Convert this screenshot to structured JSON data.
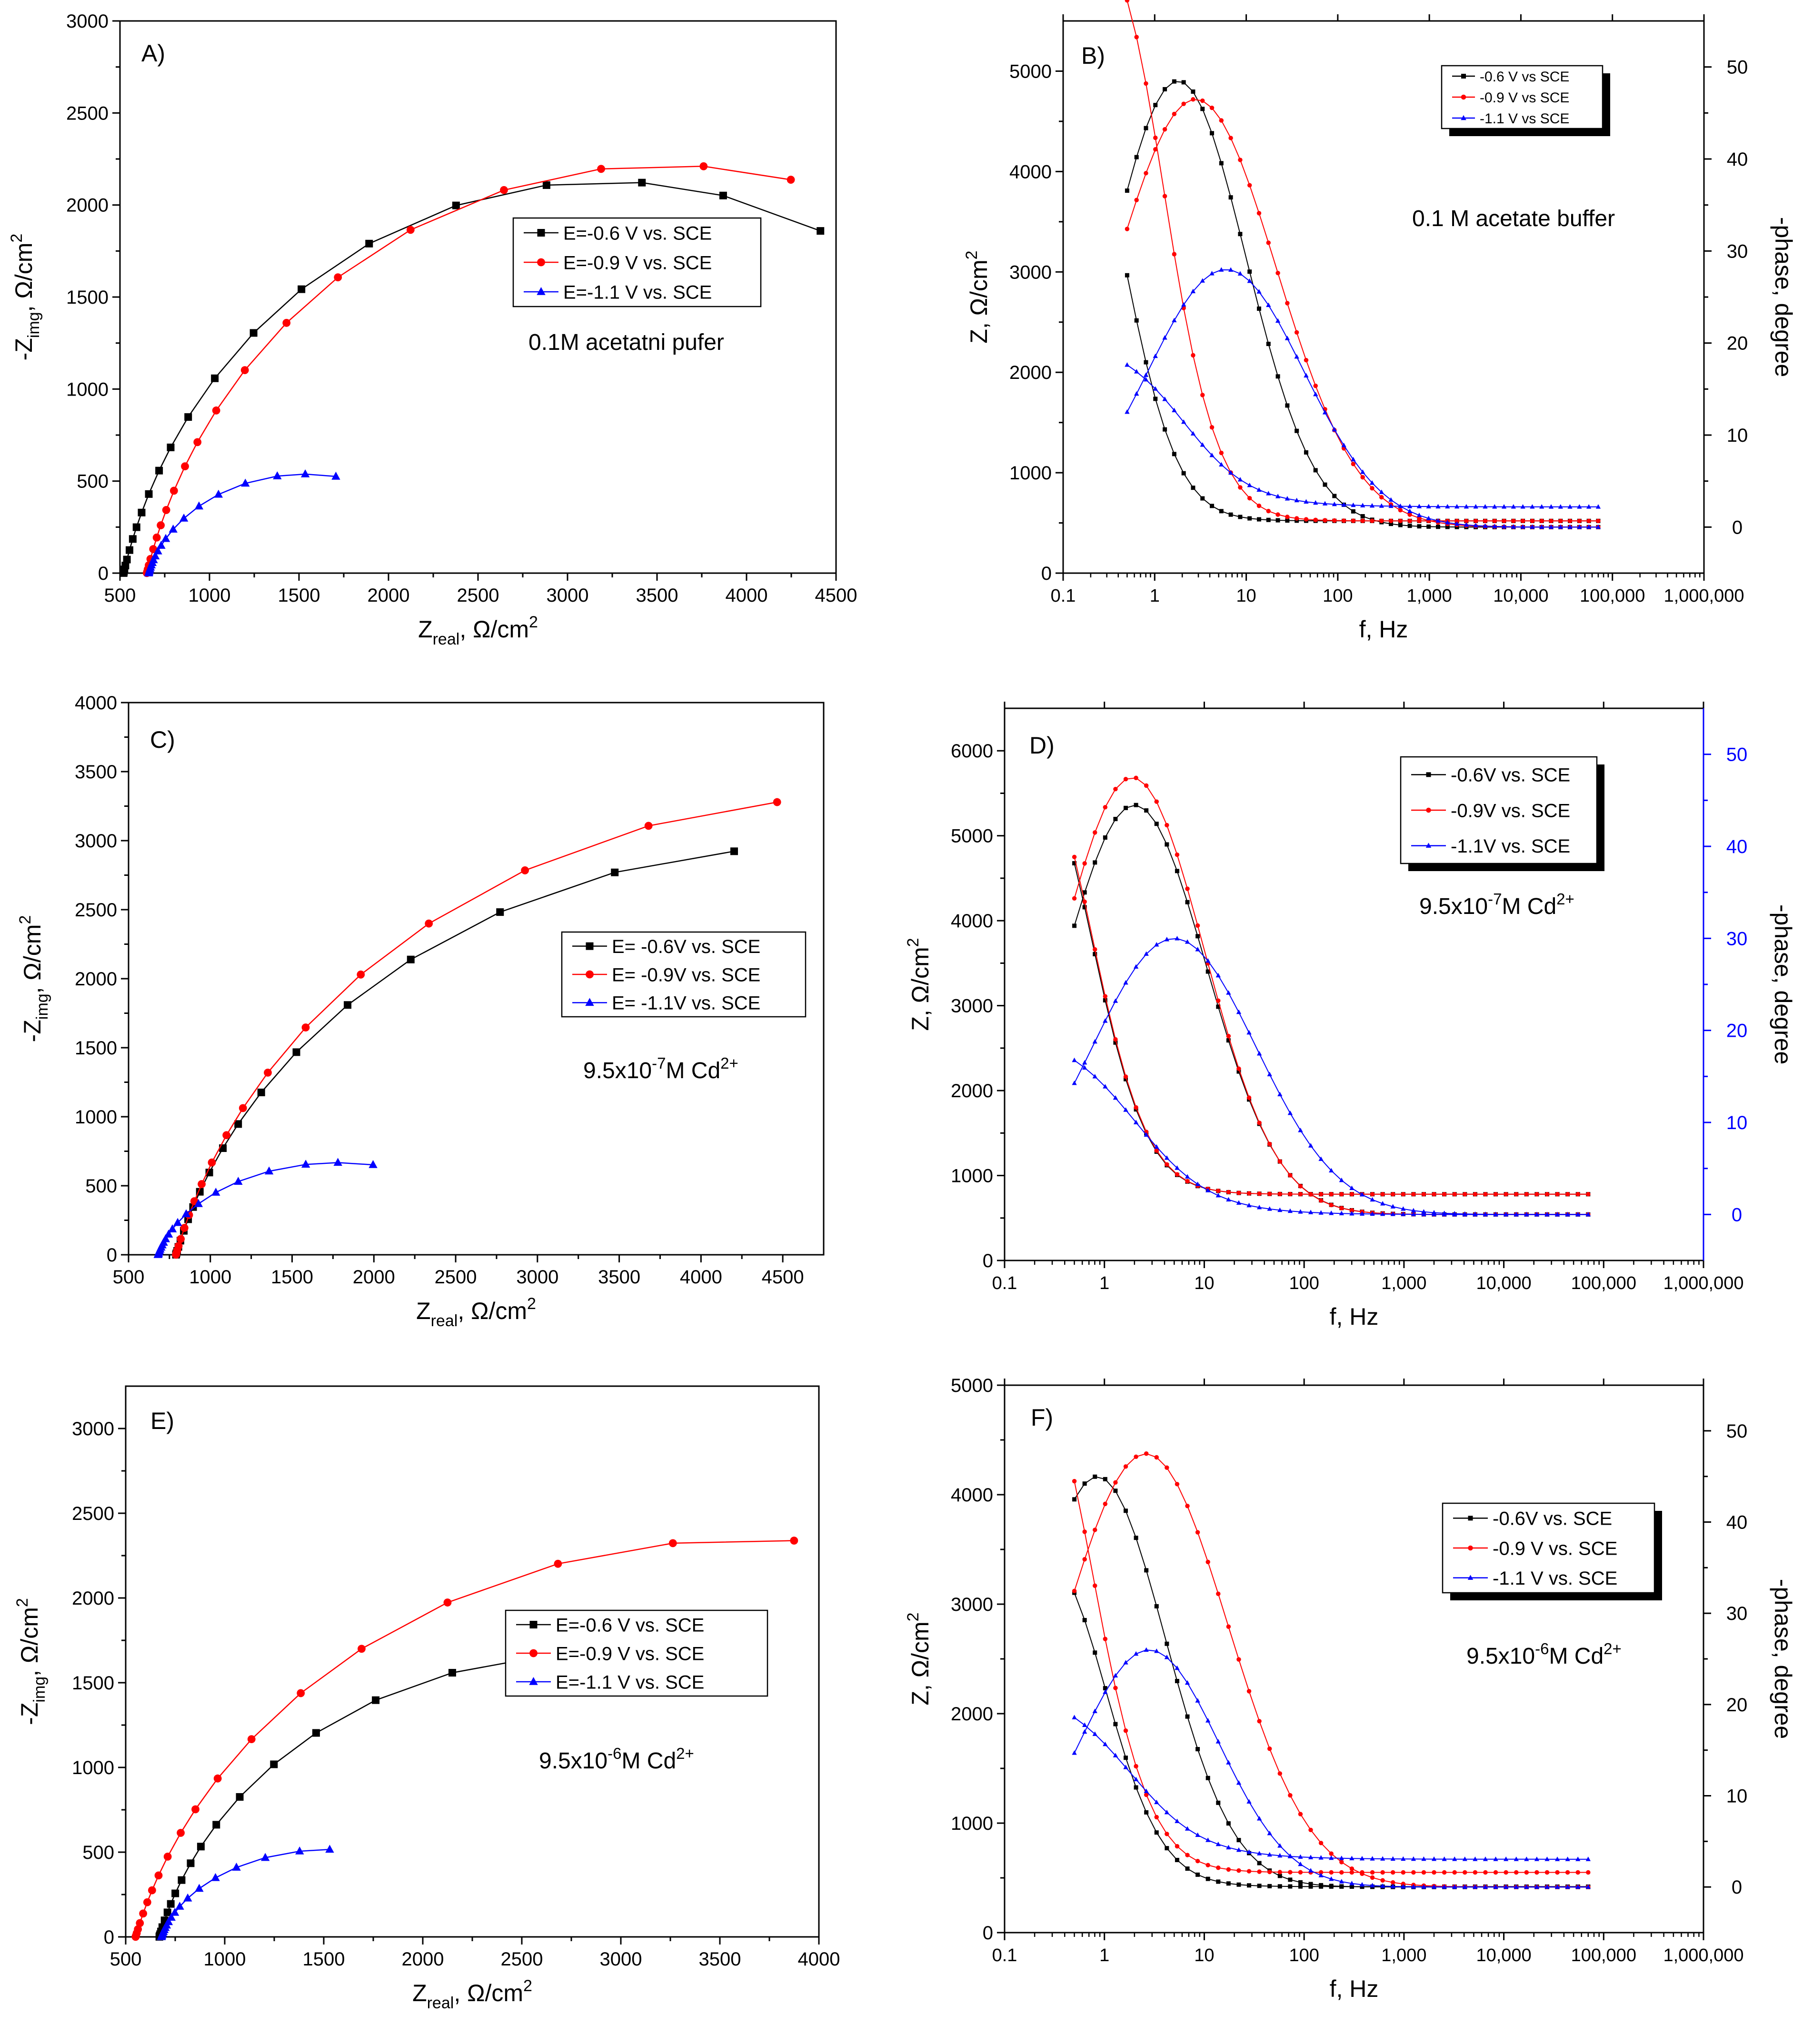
{
  "figure": "EIS Nyquist and Bode plots",
  "chart_data": [
    {
      "id": "A",
      "type": "scatter",
      "kind": "nyquist",
      "panel_label": "A)",
      "annotation": "0.1M acetatni pufer",
      "xlabel": "Z",
      "xlabel_sub": "real",
      "xlabel_tail": ", Ω/cm",
      "xlabel_sup": "2",
      "ylabel": "-Z",
      "ylabel_sub": "img",
      "ylabel_tail": ", Ω/cm",
      "ylabel_sup": "2",
      "xlim": [
        500,
        4500
      ],
      "ylim": [
        0,
        3000
      ],
      "xticks": [
        500,
        1000,
        1500,
        2000,
        2500,
        3000,
        3500,
        4000,
        4500
      ],
      "yticks": [
        0,
        500,
        1000,
        1500,
        2000,
        2500,
        3000
      ],
      "series": [
        {
          "name": "E=-0.6 V vs. SCE",
          "color": "#000000",
          "marker": "square",
          "R0": 520,
          "Rct": 5400,
          "scale": 1.0,
          "freqs": [
            70000,
            10000,
            2000,
            700,
            300,
            150,
            80,
            50,
            35,
            25,
            18,
            13,
            10,
            7.5,
            5.5,
            4,
            3,
            2.2,
            1.6,
            1.2,
            0.9,
            0.7,
            0.5
          ]
        },
        {
          "name": "E=-0.9 V vs. SCE",
          "color": "#ff0000",
          "marker": "circle",
          "R0": 650,
          "Rct": 5800,
          "scale": 0.97,
          "freqs": [
            70000,
            10000,
            2000,
            700,
            300,
            150,
            80,
            50,
            35,
            25,
            18,
            13,
            10,
            7.5,
            5.5,
            4,
            3,
            2.2,
            1.6,
            1.2,
            0.9,
            0.7,
            0.5
          ]
        },
        {
          "name": "E=-1.1 V vs. SCE",
          "color": "#0000ff",
          "marker": "triangle",
          "R0": 660,
          "Rct": 1750,
          "scale": 0.78,
          "freqs": [
            70000,
            5000,
            1000,
            400,
            200,
            120,
            80,
            55,
            40,
            30,
            22,
            16,
            12,
            9,
            6.5,
            4.7,
            3.4,
            2.5,
            1.8,
            1.3,
            1,
            0.75
          ]
        }
      ],
      "legend": [
        "E=-0.6 V vs. SCE",
        "E=-0.9 V vs. SCE",
        "E=-1.1 V vs. SCE"
      ]
    },
    {
      "id": "B",
      "type": "line",
      "kind": "bode",
      "panel_label": "B)",
      "annotation": "0.1 M acetate buffer",
      "xlabel": "f, Hz",
      "ylabel": "Z, Ω/cm",
      "ylabel_sup": "2",
      "y2label": "-phase, degree",
      "ylim": [
        0,
        5500
      ],
      "y2lim": [
        -5,
        55
      ],
      "yticks": [
        0,
        1000,
        2000,
        3000,
        4000,
        5000
      ],
      "y2ticks": [
        0,
        10,
        20,
        30,
        40,
        50
      ],
      "xlim": [
        0.1,
        1000000
      ],
      "xticks": [
        0.1,
        1,
        10,
        100,
        1000,
        10000,
        100000,
        1000000
      ],
      "xticklabels": [
        "0.1",
        "1",
        "10",
        "100",
        "1,000",
        "10,000",
        "100,000",
        "1,000,000"
      ],
      "y2color": "#000000",
      "series": [
        {
          "name": "-0.6 V vs SCE",
          "color": "#000000",
          "marker": "square",
          "R0": 520,
          "Rct": 4600,
          "fc": 0.35,
          "n": 1.0,
          "phase_peak": 48.5,
          "phase_fpk": 1.8,
          "phase_w": 0.74
        },
        {
          "name": "-0.9 V vs SCE",
          "color": "#ff0000",
          "marker": "circle",
          "R0": 520,
          "Rct": 6000,
          "fc": 0.9,
          "n": 1.0,
          "phase_peak": 46.5,
          "phase_fpk": 2.8,
          "phase_w": 0.88
        },
        {
          "name": "-1.1 V vs SCE",
          "color": "#0000ff",
          "marker": "triangle",
          "R0": 660,
          "Rct": 1700,
          "fc": 1.6,
          "n": 0.8,
          "phase_peak": 28,
          "phase_fpk": 6,
          "phase_w": 0.85
        }
      ],
      "legend": [
        "-0.6 V vs SCE",
        "-0.9 V vs SCE",
        "-1.1 V vs SCE"
      ]
    },
    {
      "id": "C",
      "type": "scatter",
      "kind": "nyquist",
      "panel_label": "C)",
      "annotation": "9.5x10",
      "annotation_sup": "-7",
      "annotation_tail": "M Cd",
      "annotation_sup2": "2+",
      "xlabel": "Z",
      "xlabel_sub": "real",
      "xlabel_tail": ", Ω/cm",
      "xlabel_sup": "2",
      "ylabel": "-Z",
      "ylabel_sub": "img",
      "ylabel_tail": ", Ω/cm",
      "ylabel_sup": "2",
      "xlim": [
        500,
        4750
      ],
      "ylim": [
        0,
        4000
      ],
      "xticks": [
        500,
        1000,
        1500,
        2000,
        2500,
        3000,
        3500,
        4000,
        4500
      ],
      "yticks": [
        0,
        500,
        1000,
        1500,
        2000,
        2500,
        3000,
        3500,
        4000
      ],
      "series": [
        {
          "name": "E= -0.6V vs. SCE",
          "color": "#000000",
          "marker": "square",
          "R0": 790,
          "Rct": 7800,
          "scale": 0.96,
          "freqs": [
            70000,
            10000,
            2000,
            700,
            300,
            150,
            80,
            50,
            35,
            25,
            18,
            13,
            10,
            7.5,
            5.5,
            4,
            3,
            2.2,
            1.6,
            1.2,
            0.9,
            0.7,
            0.5
          ]
        },
        {
          "name": "E= -0.9V vs. SCE",
          "color": "#ff0000",
          "marker": "circle",
          "R0": 790,
          "Rct": 8400,
          "scale": 1.0,
          "freqs": [
            70000,
            10000,
            2000,
            700,
            300,
            150,
            80,
            50,
            35,
            25,
            18,
            13,
            10,
            7.5,
            5.5,
            4,
            3,
            2.2,
            1.6,
            1.2,
            0.9,
            0.7,
            0.5
          ]
        },
        {
          "name": "E= -1.1V vs. SCE",
          "color": "#0000ff",
          "marker": "triangle",
          "R0": 680,
          "Rct": 2200,
          "scale": 0.77,
          "freqs": [
            70000,
            5000,
            1000,
            400,
            200,
            120,
            80,
            55,
            40,
            30,
            22,
            16,
            12,
            9,
            6.5,
            4.7,
            3.4,
            2.5,
            1.8,
            1.3,
            1,
            0.75
          ]
        }
      ],
      "legend": [
        "E= -0.6V vs. SCE",
        "E= -0.9V vs. SCE",
        "E= -1.1V vs. SCE"
      ]
    },
    {
      "id": "D",
      "type": "line",
      "kind": "bode",
      "panel_label": "D)",
      "annotation": "9.5x10",
      "annotation_sup": "-7",
      "annotation_tail": "M Cd",
      "annotation_sup2": "2+",
      "xlabel": "f, Hz",
      "ylabel": "Z, Ω/cm",
      "ylabel_sup": "2",
      "y2label": "-phase, degree",
      "ylim": [
        0,
        6500
      ],
      "y2lim": [
        -5,
        55
      ],
      "yticks": [
        0,
        1000,
        2000,
        3000,
        4000,
        5000,
        6000
      ],
      "y2ticks": [
        0,
        10,
        20,
        30,
        40,
        50
      ],
      "xlim": [
        0.1,
        1000000
      ],
      "xticks": [
        0.1,
        1,
        10,
        100,
        1000,
        10000,
        100000,
        1000000
      ],
      "xticklabels": [
        "0.1",
        "1",
        "10",
        "100",
        "1,000",
        "10,000",
        "100,000",
        "1,000,000"
      ],
      "y2color": "#0000ff",
      "series": [
        {
          "name": "-0.6V vs. SCE",
          "color": "#000000",
          "marker": "square",
          "R0": 780,
          "Rct": 5500,
          "fc": 0.55,
          "n": 1.0,
          "phase_peak": 44.5,
          "phase_fpk": 2,
          "phase_w": 0.72
        },
        {
          "name": "-0.9V vs. SCE",
          "color": "#ff0000",
          "marker": "circle",
          "R0": 780,
          "Rct": 5600,
          "fc": 0.55,
          "n": 1.0,
          "phase_peak": 47.5,
          "phase_fpk": 1.9,
          "phase_w": 0.72
        },
        {
          "name": "-1.1V vs. SCE",
          "color": "#0000ff",
          "marker": "triangle",
          "R0": 540,
          "Rct": 2200,
          "fc": 1.5,
          "n": 0.8,
          "phase_peak": 30,
          "phase_fpk": 5,
          "phase_w": 0.82
        }
      ],
      "legend": [
        "-0.6V vs. SCE",
        "-0.9V vs. SCE",
        "-1.1V vs. SCE"
      ]
    },
    {
      "id": "E",
      "type": "scatter",
      "kind": "nyquist",
      "panel_label": "E)",
      "annotation": "9.5x10",
      "annotation_sup": "-6",
      "annotation_tail": "M Cd",
      "annotation_sup2": "2+",
      "xlabel": "Z",
      "xlabel_sub": "real",
      "xlabel_tail": ", Ω/cm",
      "xlabel_sup": "2",
      "ylabel": "-Z",
      "ylabel_sub": "img",
      "ylabel_tail": ", Ω/cm",
      "ylabel_sup": "2",
      "xlim": [
        500,
        4000
      ],
      "ylim": [
        0,
        3250
      ],
      "xticks": [
        500,
        1000,
        1500,
        2000,
        2500,
        3000,
        3500,
        4000
      ],
      "yticks": [
        0,
        500,
        1000,
        1500,
        2000,
        2500,
        3000
      ],
      "series": [
        {
          "name": "E=-0.6 V vs. SCE",
          "color": "#000000",
          "marker": "square",
          "R0": 670,
          "Rct": 4300,
          "scale": 0.98,
          "freqs": [
            70000,
            10000,
            2000,
            700,
            300,
            150,
            80,
            50,
            35,
            25,
            18,
            13,
            10,
            7.5,
            5.5,
            4,
            3,
            2.2,
            1.6,
            1.2,
            0.9
          ]
        },
        {
          "name": "E=-0.9 V vs. SCE",
          "color": "#ff0000",
          "marker": "circle",
          "R0": 550,
          "Rct": 6200,
          "scale": 0.96,
          "freqs": [
            70000,
            10000,
            2000,
            700,
            300,
            150,
            80,
            50,
            35,
            25,
            18,
            13,
            10,
            7.5,
            5.5,
            4,
            3,
            2.2,
            1.6,
            1.2,
            0.9,
            0.7,
            0.5
          ]
        },
        {
          "name": "E=-1.1 V vs. SCE",
          "color": "#0000ff",
          "marker": "triangle",
          "R0": 680,
          "Rct": 1700,
          "scale": 0.77,
          "freqs": [
            70000,
            5000,
            1000,
            400,
            200,
            120,
            80,
            55,
            40,
            30,
            22,
            16,
            12,
            9,
            6.5,
            4.7,
            3.4,
            2.5,
            1.8,
            1.3,
            1
          ]
        }
      ],
      "legend": [
        "E=-0.6 V vs. SCE",
        "E=-0.9 V vs. SCE",
        "E=-1.1 V vs. SCE"
      ]
    },
    {
      "id": "F",
      "type": "line",
      "kind": "bode",
      "panel_label": "F)",
      "annotation": "9.5x10",
      "annotation_sup": "-6",
      "annotation_tail": "M Cd",
      "annotation_sup2": "2+",
      "xlabel": "f, Hz",
      "ylabel": "Z, Ω/cm",
      "ylabel_sup": "2",
      "y2label": "-phase, degree",
      "ylim": [
        0,
        5000
      ],
      "y2lim": [
        -5,
        55
      ],
      "yticks": [
        0,
        1000,
        2000,
        3000,
        4000,
        5000
      ],
      "y2ticks": [
        0,
        10,
        20,
        30,
        40,
        50
      ],
      "xlim": [
        0.1,
        1000000
      ],
      "xticks": [
        0.1,
        1,
        10,
        100,
        1000,
        10000,
        100000,
        1000000
      ],
      "xticklabels": [
        "0.1",
        "1",
        "10",
        "100",
        "1,000",
        "10,000",
        "100,000",
        "1,000,000"
      ],
      "y2color": "#000000",
      "series": [
        {
          "name": "-0.6V vs. SCE",
          "color": "#000000",
          "marker": "square",
          "R0": 420,
          "Rct": 3300,
          "fc": 0.75,
          "n": 1.0,
          "phase_peak": 45,
          "phase_fpk": 0.85,
          "phase_w": 0.68
        },
        {
          "name": "-0.9 V vs. SCE",
          "color": "#ff0000",
          "marker": "circle",
          "R0": 550,
          "Rct": 5000,
          "fc": 0.55,
          "n": 1.0,
          "phase_peak": 47.5,
          "phase_fpk": 2.6,
          "phase_w": 0.82
        },
        {
          "name": "-1.1 V vs. SCE",
          "color": "#0000ff",
          "marker": "triangle",
          "R0": 670,
          "Rct": 1600,
          "fc": 1.4,
          "n": 0.8,
          "phase_peak": 26,
          "phase_fpk": 2.8,
          "phase_w": 0.7
        }
      ],
      "legend": [
        "-0.6V vs. SCE",
        "-0.9 V vs. SCE",
        "-1.1 V vs. SCE"
      ]
    }
  ]
}
